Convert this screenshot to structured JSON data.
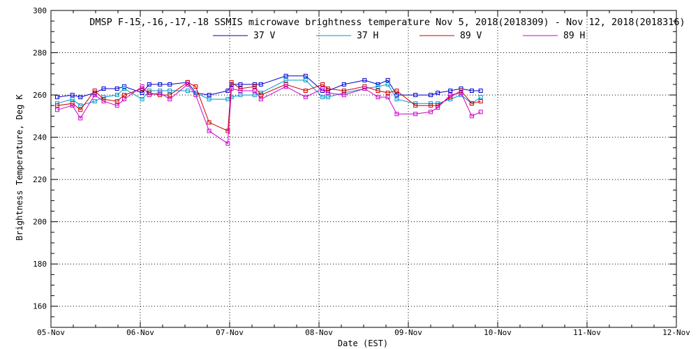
{
  "chart_data": {
    "type": "line",
    "title": "DMSP F-15,-16,-17,-18 SSMIS microwave brightness temperature Nov  5, 2018(2018309) - Nov 12, 2018(2018316)",
    "xlabel": "Date (EST)",
    "ylabel": "Brightness Temperature, Deg K",
    "ylim": [
      150,
      300
    ],
    "xlim": [
      0,
      7
    ],
    "yticks": [
      160,
      180,
      200,
      220,
      240,
      260,
      280,
      300
    ],
    "x_tick_labels": [
      "05-Nov",
      "06-Nov",
      "07-Nov",
      "08-Nov",
      "09-Nov",
      "10-Nov",
      "11-Nov",
      "12-Nov"
    ],
    "grid": "dotted",
    "legend_position": "top-center",
    "series": [
      {
        "name": "37 V",
        "color": "#0000cc",
        "marker": "square",
        "x": [
          0.07,
          0.24,
          0.33,
          0.49,
          0.59,
          0.74,
          0.82,
          1.02,
          1.1,
          1.22,
          1.33,
          1.53,
          1.62,
          1.77,
          1.98,
          2.02,
          2.12,
          2.28,
          2.35,
          2.63,
          2.85,
          3.04,
          3.1,
          3.28,
          3.51,
          3.66,
          3.77,
          3.87,
          4.08,
          4.25,
          4.33,
          4.47,
          4.59,
          4.71,
          4.81
        ],
        "y": [
          259,
          260,
          259,
          261,
          263,
          263,
          264,
          261,
          265,
          265,
          265,
          266,
          261,
          260,
          262,
          265,
          265,
          265,
          265,
          269,
          269,
          262,
          262,
          265,
          267,
          265,
          267,
          260,
          260,
          260,
          261,
          262,
          263,
          262,
          262
        ]
      },
      {
        "name": "37 H",
        "color": "#0099cc",
        "marker": "square",
        "x": [
          0.07,
          0.24,
          0.33,
          0.49,
          0.59,
          0.74,
          0.82,
          1.02,
          1.1,
          1.22,
          1.33,
          1.53,
          1.62,
          1.77,
          1.98,
          2.02,
          2.12,
          2.28,
          2.35,
          2.63,
          2.85,
          3.04,
          3.1,
          3.28,
          3.51,
          3.66,
          3.77,
          3.87,
          4.08,
          4.25,
          4.33,
          4.47,
          4.59,
          4.71,
          4.81
        ],
        "y": [
          256,
          258,
          255,
          257,
          259,
          260,
          263,
          258,
          262,
          262,
          262,
          262,
          261,
          258,
          258,
          259,
          260,
          260,
          261,
          267,
          267,
          259,
          259,
          261,
          263,
          264,
          265,
          258,
          256,
          256,
          256,
          258,
          260,
          256,
          259
        ]
      },
      {
        "name": "89 V",
        "color": "#cc0000",
        "marker": "square",
        "x": [
          0.07,
          0.24,
          0.33,
          0.49,
          0.59,
          0.74,
          0.82,
          1.02,
          1.1,
          1.22,
          1.33,
          1.53,
          1.62,
          1.77,
          1.98,
          2.02,
          2.12,
          2.28,
          2.35,
          2.63,
          2.85,
          3.04,
          3.1,
          3.28,
          3.51,
          3.66,
          3.77,
          3.87,
          4.08,
          4.25,
          4.33,
          4.47,
          4.59,
          4.71,
          4.81
        ],
        "y": [
          255,
          256,
          253,
          262,
          258,
          257,
          260,
          263,
          261,
          260,
          260,
          266,
          264,
          247,
          243,
          266,
          263,
          264,
          260,
          265,
          262,
          265,
          263,
          262,
          264,
          262,
          261,
          262,
          255,
          255,
          255,
          259,
          262,
          256,
          257
        ]
      },
      {
        "name": "89 H",
        "color": "#cc00cc",
        "marker": "square",
        "x": [
          0.07,
          0.24,
          0.33,
          0.49,
          0.59,
          0.74,
          0.82,
          1.02,
          1.1,
          1.22,
          1.33,
          1.53,
          1.62,
          1.77,
          1.98,
          2.02,
          2.12,
          2.28,
          2.35,
          2.63,
          2.85,
          3.04,
          3.1,
          3.28,
          3.51,
          3.66,
          3.77,
          3.87,
          4.08,
          4.25,
          4.33,
          4.47,
          4.59,
          4.71,
          4.81
        ],
        "y": [
          253,
          255,
          249,
          260,
          257,
          255,
          258,
          264,
          260,
          261,
          258,
          265,
          260,
          243,
          237,
          263,
          262,
          262,
          258,
          264,
          259,
          263,
          261,
          260,
          263,
          259,
          259,
          251,
          251,
          252,
          254,
          260,
          261,
          250,
          252
        ]
      }
    ]
  }
}
